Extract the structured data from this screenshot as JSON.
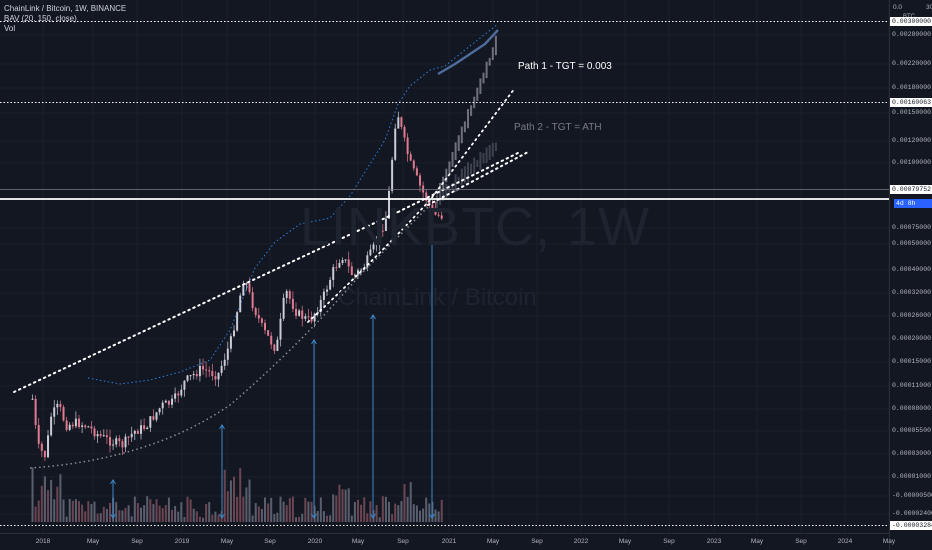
{
  "header": {
    "symbol_line": "ChainLink / Bitcoin, 1W, BINANCE",
    "indicator": "BAV (20, 150, close)",
    "volume": "Vol",
    "currency": "BTC",
    "scale_top": "0.0",
    "scale_top_right": "30"
  },
  "watermark": {
    "ticker": "LINKBTC, 1W",
    "name": "ChainLink / Bitcoin"
  },
  "annotations": {
    "path1": "Path 1 - TGT = 0.003",
    "path2": "Path 2 - TGT = ATH"
  },
  "price_axis": {
    "labels": [
      "0.00280000",
      "0.00220000",
      "0.00180000",
      "0.00150000",
      "0.00120000",
      "0.00100000",
      "0.00075000",
      "0.00050000",
      "0.00040000",
      "0.00032000",
      "0.00026000",
      "0.00020000",
      "0.00015000",
      "0.00011000",
      "0.00008000",
      "0.00005500",
      "0.00003000",
      "0.00001000",
      "-0.00000500",
      "-0.00002400"
    ],
    "tags": {
      "top": "0.00300000",
      "ath": "0.00160063",
      "current": "0.00079752",
      "countdown": "4d 8h",
      "bottom": "-0.00003284"
    }
  },
  "time_axis": [
    "2018",
    "May",
    "Sep",
    "2019",
    "May",
    "Sep",
    "2020",
    "May",
    "Sep",
    "2021",
    "May",
    "Sep",
    "2022",
    "May",
    "Sep",
    "2023",
    "May",
    "Sep",
    "2024",
    "May"
  ],
  "colors": {
    "background": "#131722",
    "up": "#c9ccd6",
    "down": "#e07a90",
    "band": "#2f7fd8",
    "annotation1": "#ffffff",
    "annotation2": "#787b86",
    "arrow": "#3c87c9"
  },
  "chart_data": {
    "type": "candlestick",
    "title": "ChainLink / Bitcoin, 1W, BINANCE",
    "xlabel": "",
    "ylabel": "BTC",
    "ylim": [
      -3.284e-05,
      0.003
    ],
    "levels": {
      "target": 0.003,
      "ath": 0.00160063,
      "current": 0.00079752
    },
    "price_path": [
      [
        "2017-12-01",
        9.5e-05
      ],
      [
        "2017-12-15",
        3.8e-05
      ],
      [
        "2018-01-05",
        2.8e-05
      ],
      [
        "2018-01-20",
        7.2e-05
      ],
      [
        "2018-02-10",
        8.5e-05
      ],
      [
        "2018-03-01",
        6.2e-05
      ],
      [
        "2018-04-01",
        6.5e-05
      ],
      [
        "2018-05-01",
        6e-05
      ],
      [
        "2018-06-01",
        5e-05
      ],
      [
        "2018-07-01",
        4.4e-05
      ],
      [
        "2018-08-01",
        4e-05
      ],
      [
        "2018-09-01",
        5.5e-05
      ],
      [
        "2018-10-01",
        6e-05
      ],
      [
        "2018-11-15",
        8.5e-05
      ],
      [
        "2018-12-15",
        9e-05
      ],
      [
        "2019-01-15",
        0.00012
      ],
      [
        "2019-03-01",
        0.00014
      ],
      [
        "2019-04-15",
        0.00013
      ],
      [
        "2019-05-20",
        0.0002
      ],
      [
        "2019-06-25",
        0.00038
      ],
      [
        "2019-07-15",
        0.0003
      ],
      [
        "2019-08-15",
        0.00023
      ],
      [
        "2019-09-20",
        0.00018
      ],
      [
        "2019-10-15",
        0.00033
      ],
      [
        "2019-11-15",
        0.00027
      ],
      [
        "2019-12-20",
        0.00025
      ],
      [
        "2020-01-25",
        0.00031
      ],
      [
        "2020-02-20",
        0.0004
      ],
      [
        "2020-03-15",
        0.00046
      ],
      [
        "2020-04-15",
        0.00038
      ],
      [
        "2020-05-15",
        0.00042
      ],
      [
        "2020-06-15",
        0.0005
      ],
      [
        "2020-07-15",
        0.0008
      ],
      [
        "2020-08-10",
        0.00155
      ],
      [
        "2020-08-25",
        0.0013
      ],
      [
        "2020-09-15",
        0.001
      ],
      [
        "2020-10-15",
        0.0009
      ],
      [
        "2020-11-20",
        0.0008
      ],
      [
        "2020-12-10",
        0.000797
      ]
    ],
    "projections": [
      {
        "name": "Path 1 - TGT = 0.003",
        "target": 0.003
      },
      {
        "name": "Path 2 - TGT = ATH",
        "target": 0.00160063
      }
    ]
  }
}
